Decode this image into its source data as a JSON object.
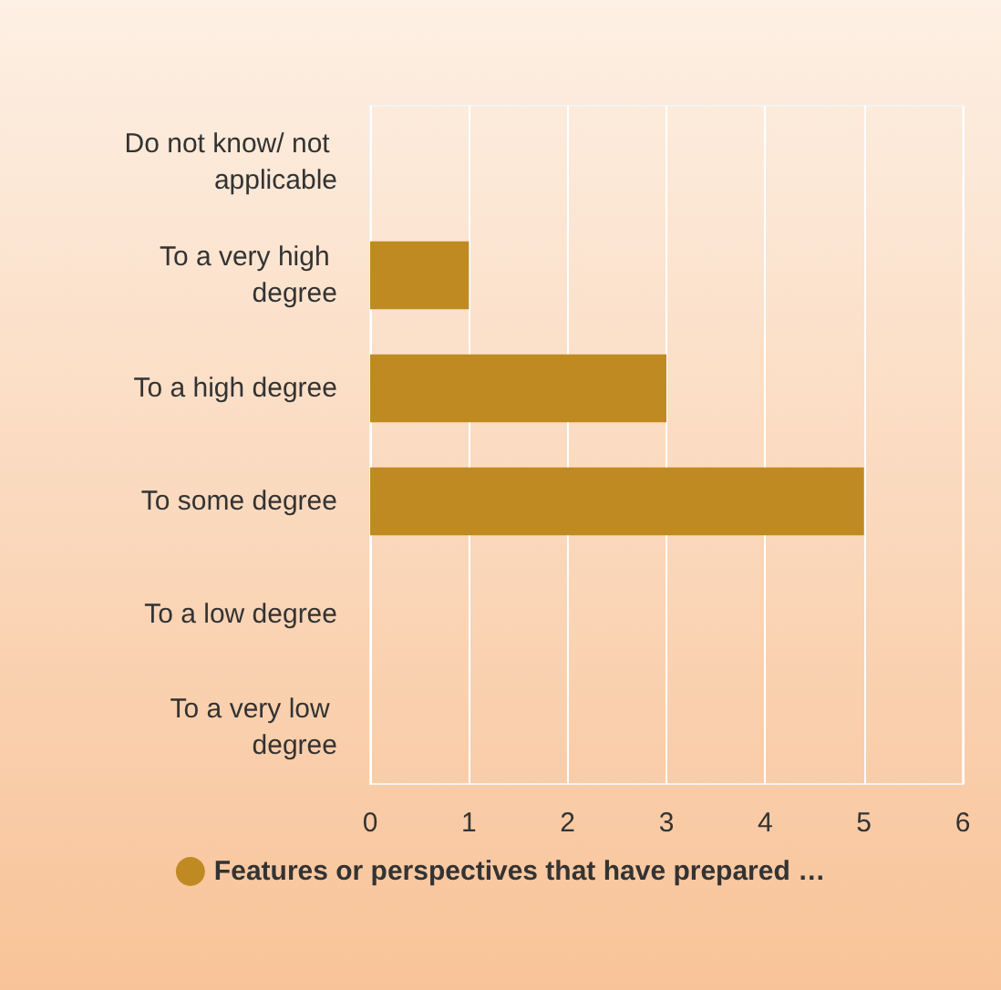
{
  "chart_data": {
    "type": "bar",
    "orientation": "horizontal",
    "categories": [
      "Do not know/ not applicable",
      "To a very high degree",
      "To a high degree",
      "To some degree",
      "To a low degree",
      "To a very low degree"
    ],
    "series": [
      {
        "name": "Features or perspectives that have prepared …",
        "color": "#c08a22",
        "values": [
          0,
          1,
          3,
          5,
          0,
          0
        ]
      }
    ],
    "xlim": [
      0,
      6
    ],
    "xticks": [
      0,
      1,
      2,
      3,
      4,
      5,
      6
    ],
    "grid": "x",
    "legend": "bottom",
    "marker": "circle"
  }
}
